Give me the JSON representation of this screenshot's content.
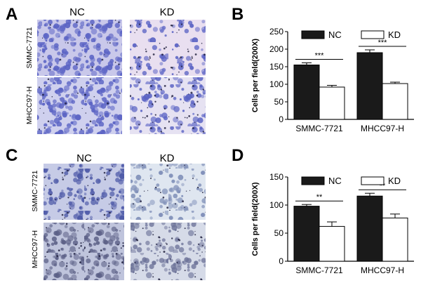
{
  "panels": {
    "A": {
      "label": "A",
      "col_headers": [
        "NC",
        "KD"
      ],
      "row_labels": [
        "SMMC-7721",
        "MHCC97-H"
      ],
      "stain_color": "#5a63c4",
      "background_color": "#e9dff0"
    },
    "C": {
      "label": "C",
      "col_headers": [
        "NC",
        "KD"
      ],
      "row_labels": [
        "SMMC-7721",
        "MHCC97-H"
      ],
      "stain_color": "#4e5aa8",
      "background_color": "#dfe6f0"
    }
  },
  "chart_data": [
    {
      "panel": "B",
      "type": "bar",
      "categories": [
        "SMMC-7721",
        "MHCC97-H"
      ],
      "series": [
        {
          "name": "NC",
          "values": [
            155,
            190
          ],
          "errors": [
            6,
            8
          ],
          "fill": "#1a1a1a"
        },
        {
          "name": "KD",
          "values": [
            92,
            102
          ],
          "errors": [
            5,
            4
          ],
          "fill": "#ffffff"
        }
      ],
      "ylabel": "Cells per field(200X)",
      "ylim": [
        0,
        250
      ],
      "yticks": [
        0,
        50,
        100,
        150,
        200,
        250
      ],
      "significance": [
        "***",
        "***"
      ],
      "legend": "top"
    },
    {
      "panel": "D",
      "type": "bar",
      "categories": [
        "SMMC-7721",
        "MHCC97-H"
      ],
      "series": [
        {
          "name": "NC",
          "values": [
            98,
            116
          ],
          "errors": [
            3,
            5
          ],
          "fill": "#1a1a1a"
        },
        {
          "name": "KD",
          "values": [
            62,
            77
          ],
          "errors": [
            8,
            7
          ],
          "fill": "#ffffff"
        }
      ],
      "ylabel": "Cells per field(200X)",
      "ylim": [
        0,
        150
      ],
      "yticks": [
        0,
        50,
        100,
        150
      ],
      "significance": [
        "**",
        "**"
      ],
      "legend": "top"
    }
  ]
}
